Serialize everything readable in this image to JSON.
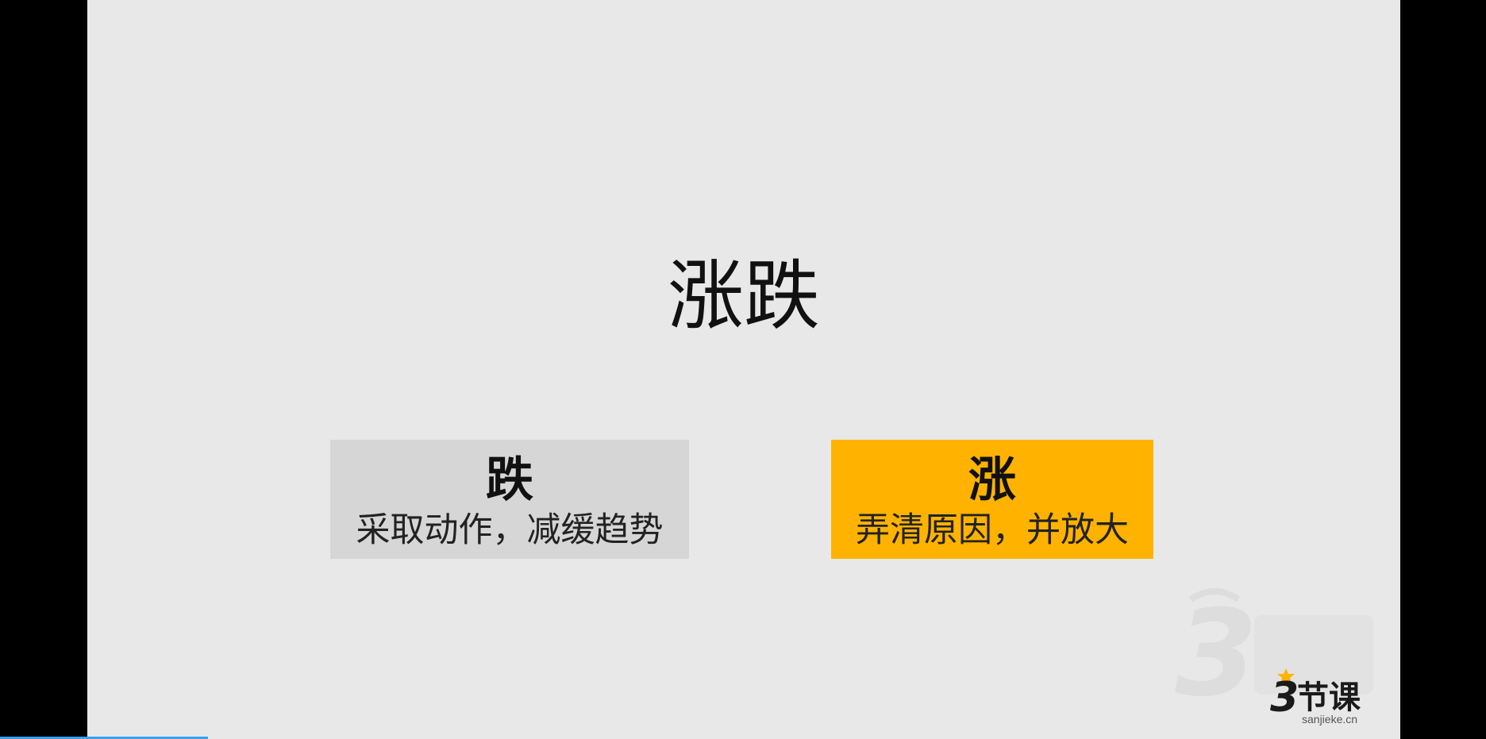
{
  "slide": {
    "title": "涨跌"
  },
  "cards": [
    {
      "heading": "跌",
      "text": "采取动作，减缓趋势",
      "color": "#d6d6d6"
    },
    {
      "heading": "涨",
      "text": "弄清原因，并放大",
      "color": "#ffb300"
    }
  ],
  "brand": {
    "logo_text": "3节课",
    "url": "sanjieke.cn",
    "accent": "#ffb300"
  },
  "player": {
    "progress_fraction": 0.14,
    "progress_color": "#3aa0e8"
  }
}
